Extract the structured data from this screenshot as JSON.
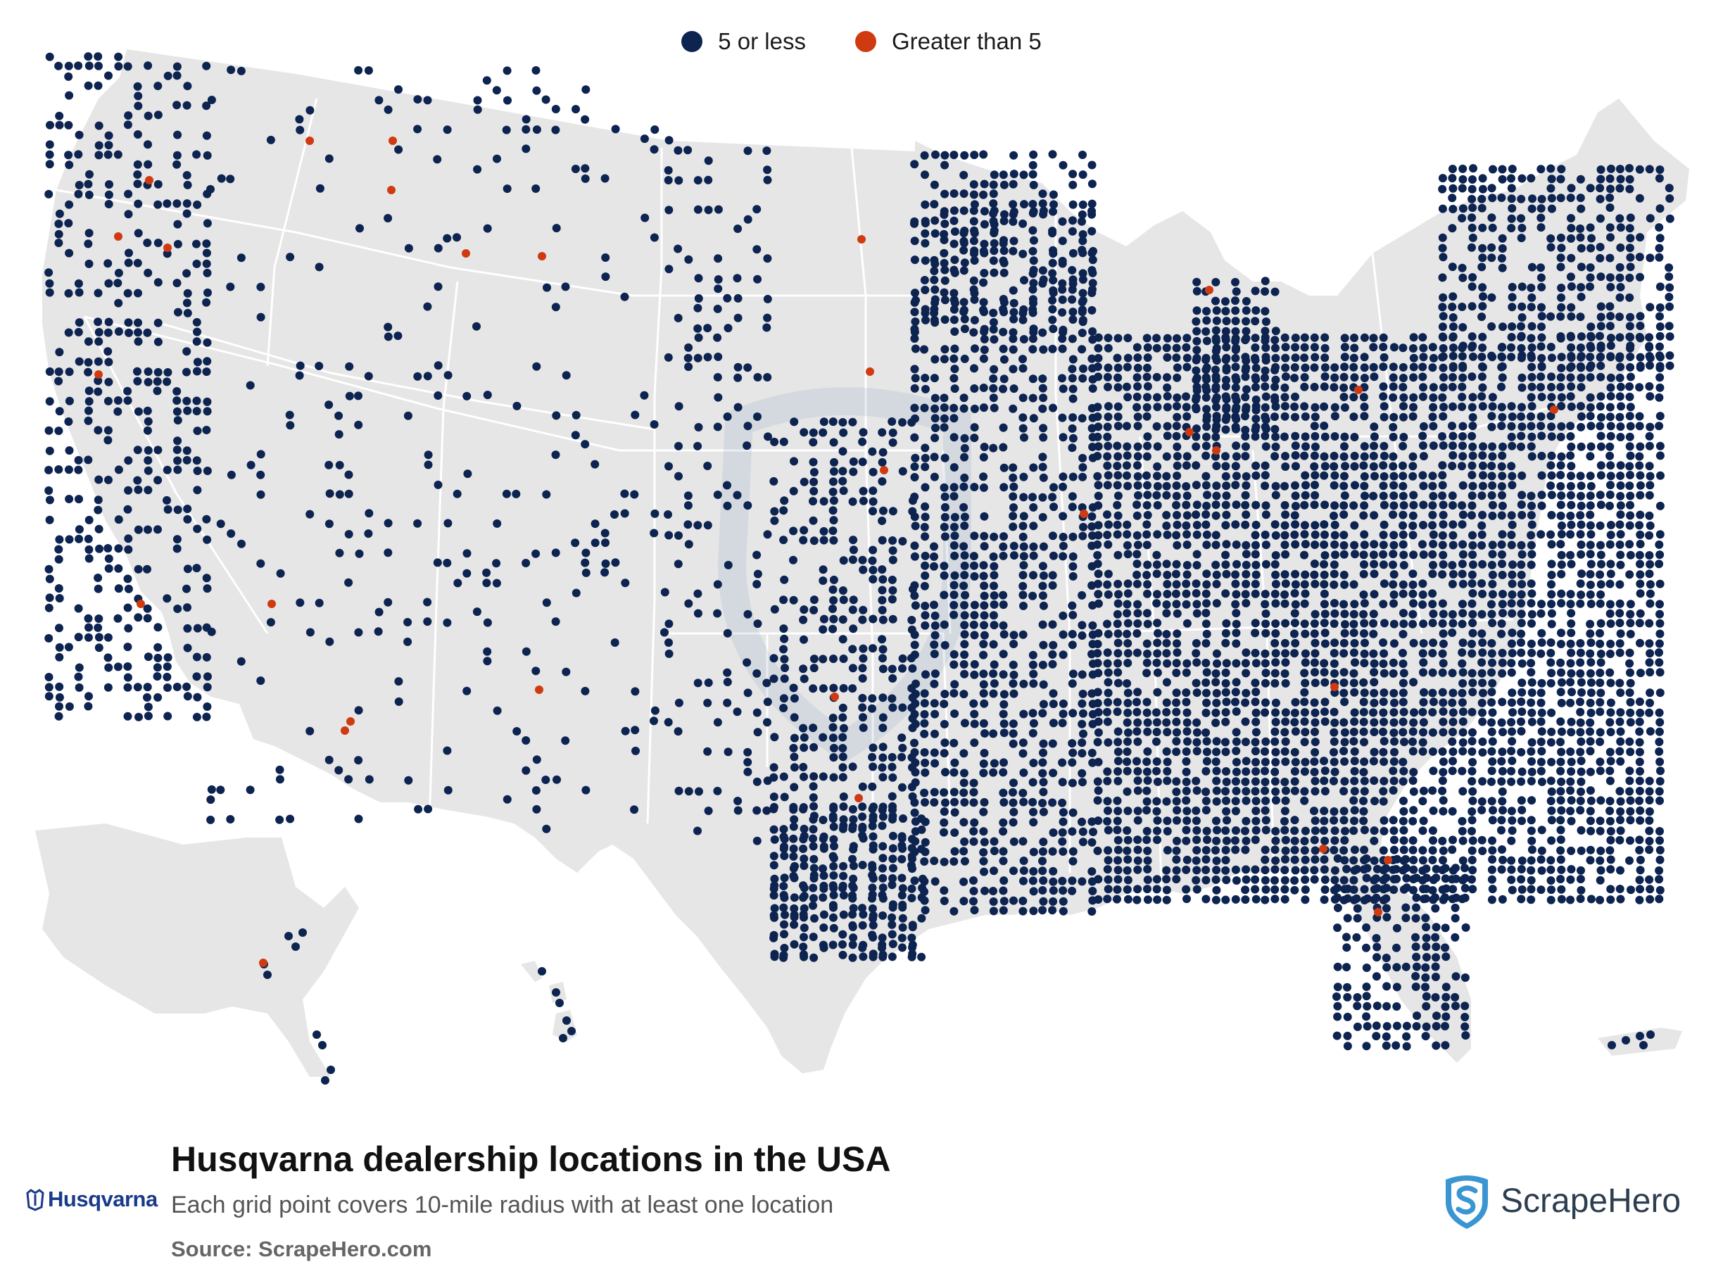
{
  "legend": {
    "items": [
      {
        "label": "5 or less",
        "color": "#0d2350"
      },
      {
        "label": "Greater than 5",
        "color": "#d03a10"
      }
    ]
  },
  "title": "Husqvarna dealership locations in the USA",
  "subtitle": "Each grid point covers 10-mile radius with at least one location",
  "source": "Source: ScrapeHero.com",
  "brand_logo": {
    "text": "Husqvarna",
    "color": "#1a3a8a"
  },
  "publisher_logo": {
    "text": "ScrapeHero",
    "icon": "shield-s-icon",
    "color": "#2d3e50"
  },
  "map": {
    "land_color": "#e6e6e6",
    "border_color": "#ffffff",
    "dot_color_low": "#0d2350",
    "dot_color_high": "#d03a10",
    "regions": [
      "Contiguous US",
      "Alaska",
      "Hawaii",
      "Puerto Rico"
    ]
  }
}
